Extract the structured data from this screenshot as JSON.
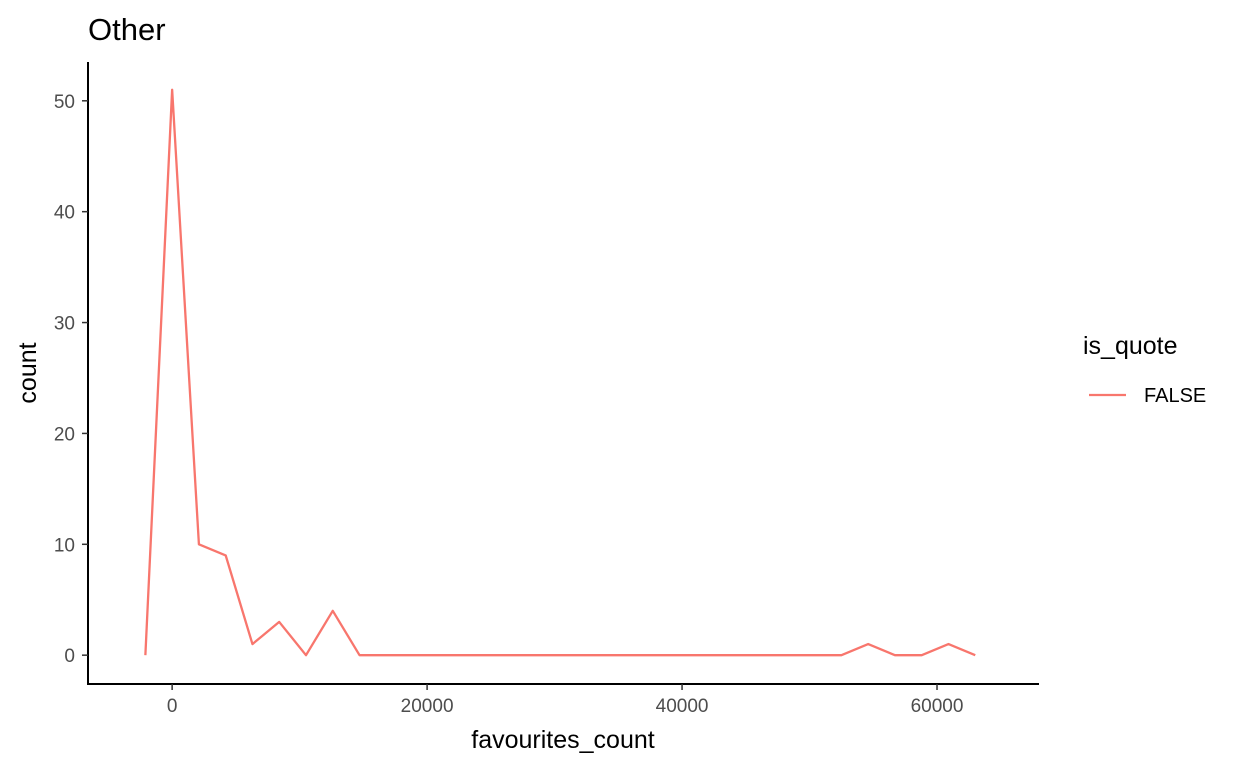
{
  "chart_data": {
    "type": "line",
    "title": "Other",
    "xlabel": "favourites_count",
    "ylabel": "count",
    "xlim": [
      -6600,
      68000
    ],
    "ylim": [
      -2.6,
      53.5
    ],
    "x_ticks": [
      0,
      20000,
      40000,
      60000
    ],
    "x_tick_labels": [
      "0",
      "20000",
      "40000",
      "60000"
    ],
    "y_ticks": [
      0,
      10,
      20,
      30,
      40,
      50
    ],
    "y_tick_labels": [
      "0",
      "10",
      "20",
      "30",
      "40",
      "50"
    ],
    "grid": false,
    "legend": {
      "title": "is_quote",
      "position": "right"
    },
    "series": [
      {
        "name": "FALSE",
        "color": "#F8766D",
        "x": [
          -2100,
          0,
          2100,
          4200,
          6300,
          8400,
          10500,
          12600,
          14700,
          16800,
          18900,
          21000,
          23100,
          25200,
          27300,
          29400,
          31500,
          33600,
          35700,
          37800,
          39900,
          42000,
          44100,
          46200,
          48300,
          50400,
          52500,
          54600,
          56700,
          58800,
          60900,
          63000
        ],
        "values": [
          0,
          51,
          10,
          9,
          1,
          3,
          0,
          4,
          0,
          0,
          0,
          0,
          0,
          0,
          0,
          0,
          0,
          0,
          0,
          0,
          0,
          0,
          0,
          0,
          0,
          0,
          0,
          1,
          0,
          0,
          1,
          0
        ]
      }
    ]
  }
}
